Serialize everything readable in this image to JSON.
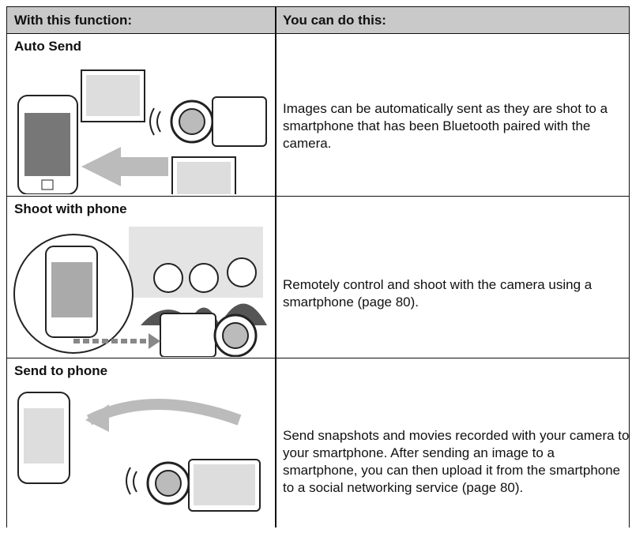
{
  "table": {
    "headers": [
      "With this function:",
      "You can do this:"
    ],
    "rows": [
      [
        "Auto Send",
        "Images can be automatically sent as they are shot to a smartphone that has been Bluetooth paired with the camera."
      ],
      [
        "Shoot with phone",
        "Remotely control and shoot with the camera using a smartphone (page 80)."
      ],
      [
        "Send to phone",
        "Send snapshots and movies recorded with your camera to your smartphone. After sending an image to a smartphone, you can then upload it from the smartphone to a social networking service (page 80)."
      ]
    ]
  }
}
